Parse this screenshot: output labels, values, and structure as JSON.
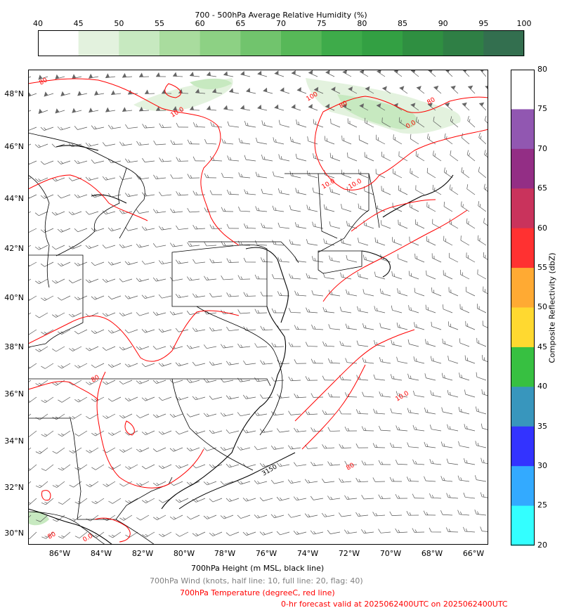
{
  "humidity_colorbar": {
    "title": "700 - 500hPa Average Relative Humidity (%)",
    "ticks": [
      "40",
      "45",
      "50",
      "55",
      "60",
      "65",
      "70",
      "75",
      "80",
      "85",
      "90",
      "95",
      "100"
    ],
    "colors": [
      "#ffffff",
      "#e3f2de",
      "#c7e9c0",
      "#a9dc9e",
      "#8dd184",
      "#71c46d",
      "#57b858",
      "#3eab4a",
      "#33a043",
      "#2f8f41",
      "#2f7f45",
      "#336f4f"
    ]
  },
  "map": {
    "lat_labels": [
      "48°N",
      "46°N",
      "44°N",
      "42°N",
      "40°N",
      "38°N",
      "36°N",
      "34°N",
      "32°N",
      "30°N"
    ],
    "lon_labels": [
      "86°W",
      "84°W",
      "82°W",
      "80°W",
      "78°W",
      "76°W",
      "74°W",
      "72°W",
      "70°W",
      "68°W",
      "66°W"
    ],
    "contour_labels": [
      "80",
      "10.0",
      "100",
      "80",
      "10.0",
      "80",
      "10.0",
      "10.0",
      "80",
      "0.0",
      "80",
      "0.0",
      "80",
      "3150"
    ],
    "colors": {
      "temperature": "#ff0000",
      "wind": "#444444",
      "height": "#000000",
      "humidity": "#c7e9c0"
    }
  },
  "reflectivity_colorbar": {
    "title": "Composite Reflectivity (dbZ)",
    "ticks": [
      "80",
      "75",
      "70",
      "65",
      "60",
      "55",
      "50",
      "45",
      "40",
      "35",
      "30",
      "25",
      "20"
    ],
    "colors": [
      "#ffffff",
      "#9157b1",
      "#932e85",
      "#c9335c",
      "#ff3131",
      "#ffaa33",
      "#ffd930",
      "#37c041",
      "#3896bd",
      "#3333ff",
      "#33aaff",
      "#33ffff"
    ]
  },
  "captions": {
    "height": "700hPa Height (m MSL, black line)",
    "wind": "700hPa Wind (knots, half line: 10, full line: 20, flag: 40)",
    "temperature": "700hPa Temperature (degreeC, red line)",
    "valid": "0-hr forecast valid at 2025062400UTC on 2025062400UTC"
  }
}
